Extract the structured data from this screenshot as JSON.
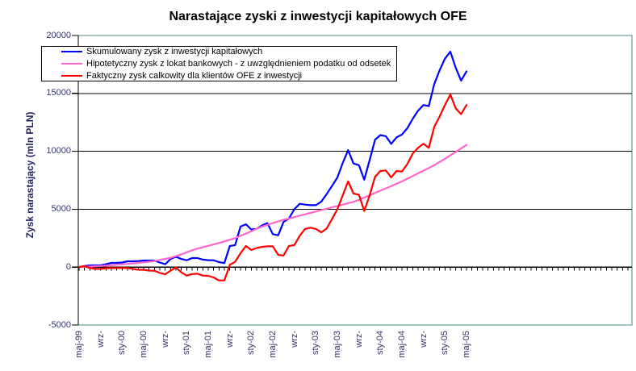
{
  "chart_data": {
    "type": "line",
    "title": "Narastające zyski z inwestycji kapitałowych OFE",
    "ylabel": "Zysk narastający (mln PLN)",
    "xlabel": "",
    "legend_position": "top-left",
    "grid": "horizontal",
    "ylim": [
      -5000,
      20000
    ],
    "y_ticks": [
      20000,
      15000,
      10000,
      5000,
      0,
      -5000
    ],
    "gridline_values": [
      15000,
      10000,
      5000
    ],
    "x_is_monthly": true,
    "x_first_month": "maj-99",
    "x_last_month": "maj-05",
    "x_labels": [
      "maj-99",
      "wrz-",
      "sty-00",
      "maj-00",
      "wrz-",
      "sty-01",
      "maj-01",
      "wrz-",
      "sty-02",
      "maj-02",
      "wrz-",
      "sty-03",
      "maj-03",
      "wrz-",
      "sty-04",
      "maj-04",
      "wrz-",
      "sty-05",
      "maj-05"
    ],
    "x_label_month_index": [
      0,
      4,
      8,
      12,
      16,
      20,
      24,
      28,
      32,
      36,
      40,
      44,
      48,
      52,
      56,
      60,
      64,
      68,
      72
    ],
    "series": [
      {
        "name": "Skumulowany zysk z inwestycji kapitałowych",
        "color": "#0000FF",
        "values": [
          0,
          100,
          150,
          150,
          150,
          250,
          360,
          360,
          400,
          500,
          500,
          520,
          570,
          570,
          570,
          400,
          250,
          700,
          900,
          700,
          590,
          780,
          780,
          650,
          600,
          590,
          430,
          350,
          1825,
          1900,
          3500,
          3700,
          3250,
          3300,
          3600,
          3800,
          2850,
          2750,
          3900,
          4200,
          5000,
          5470,
          5400,
          5350,
          5350,
          5650,
          6300,
          7000,
          7740,
          9000,
          10100,
          8950,
          8800,
          7550,
          9250,
          11000,
          11400,
          11300,
          10650,
          11200,
          11450,
          12000,
          12800,
          13500,
          14000,
          13900,
          15800,
          17000,
          18000,
          18600,
          17200,
          16100,
          16900
        ]
      },
      {
        "name": "Hipotetyczny zysk z lokat bankowych - z uwzględnieniem podatku od odsetek",
        "color": "#FF66CC",
        "values": [
          0,
          25,
          50,
          75,
          100,
          130,
          165,
          200,
          240,
          280,
          320,
          370,
          420,
          470,
          530,
          620,
          710,
          800,
          950,
          1100,
          1280,
          1450,
          1600,
          1720,
          1840,
          1960,
          2080,
          2220,
          2360,
          2500,
          2700,
          2900,
          3100,
          3300,
          3500,
          3650,
          3800,
          3950,
          4080,
          4200,
          4320,
          4440,
          4560,
          4680,
          4800,
          4920,
          5040,
          5160,
          5280,
          5400,
          5520,
          5640,
          5800,
          6000,
          6200,
          6400,
          6600,
          6800,
          7000,
          7200,
          7400,
          7630,
          7860,
          8100,
          8330,
          8560,
          8800,
          9080,
          9360,
          9650,
          9950,
          10250,
          10550
        ]
      },
      {
        "name": "Faktyczny zysk calkowity dla klientów OFE z inwestycji",
        "color": "#FF0000",
        "values": [
          0,
          100,
          -80,
          -150,
          -150,
          -100,
          -80,
          -80,
          -80,
          -80,
          -150,
          -230,
          -230,
          -300,
          -310,
          -500,
          -620,
          -300,
          -30,
          -450,
          -730,
          -600,
          -570,
          -730,
          -750,
          -890,
          -1150,
          -1150,
          200,
          450,
          1200,
          1825,
          1475,
          1650,
          1750,
          1800,
          1800,
          1050,
          1000,
          1825,
          1900,
          2700,
          3300,
          3400,
          3300,
          3000,
          3330,
          4140,
          5000,
          6200,
          7400,
          6350,
          6250,
          4850,
          6200,
          7800,
          8300,
          8350,
          7750,
          8300,
          8250,
          8900,
          9800,
          10300,
          10650,
          10300,
          12100,
          13000,
          14000,
          14900,
          13700,
          13200,
          14000
        ]
      }
    ],
    "colors": {
      "plot_border": "#4E8583",
      "axis": "#000000",
      "gridline": "#000000",
      "tick_label": "#333366",
      "axis_title": "#1F1F5F",
      "background": "#FFFFFF"
    }
  }
}
